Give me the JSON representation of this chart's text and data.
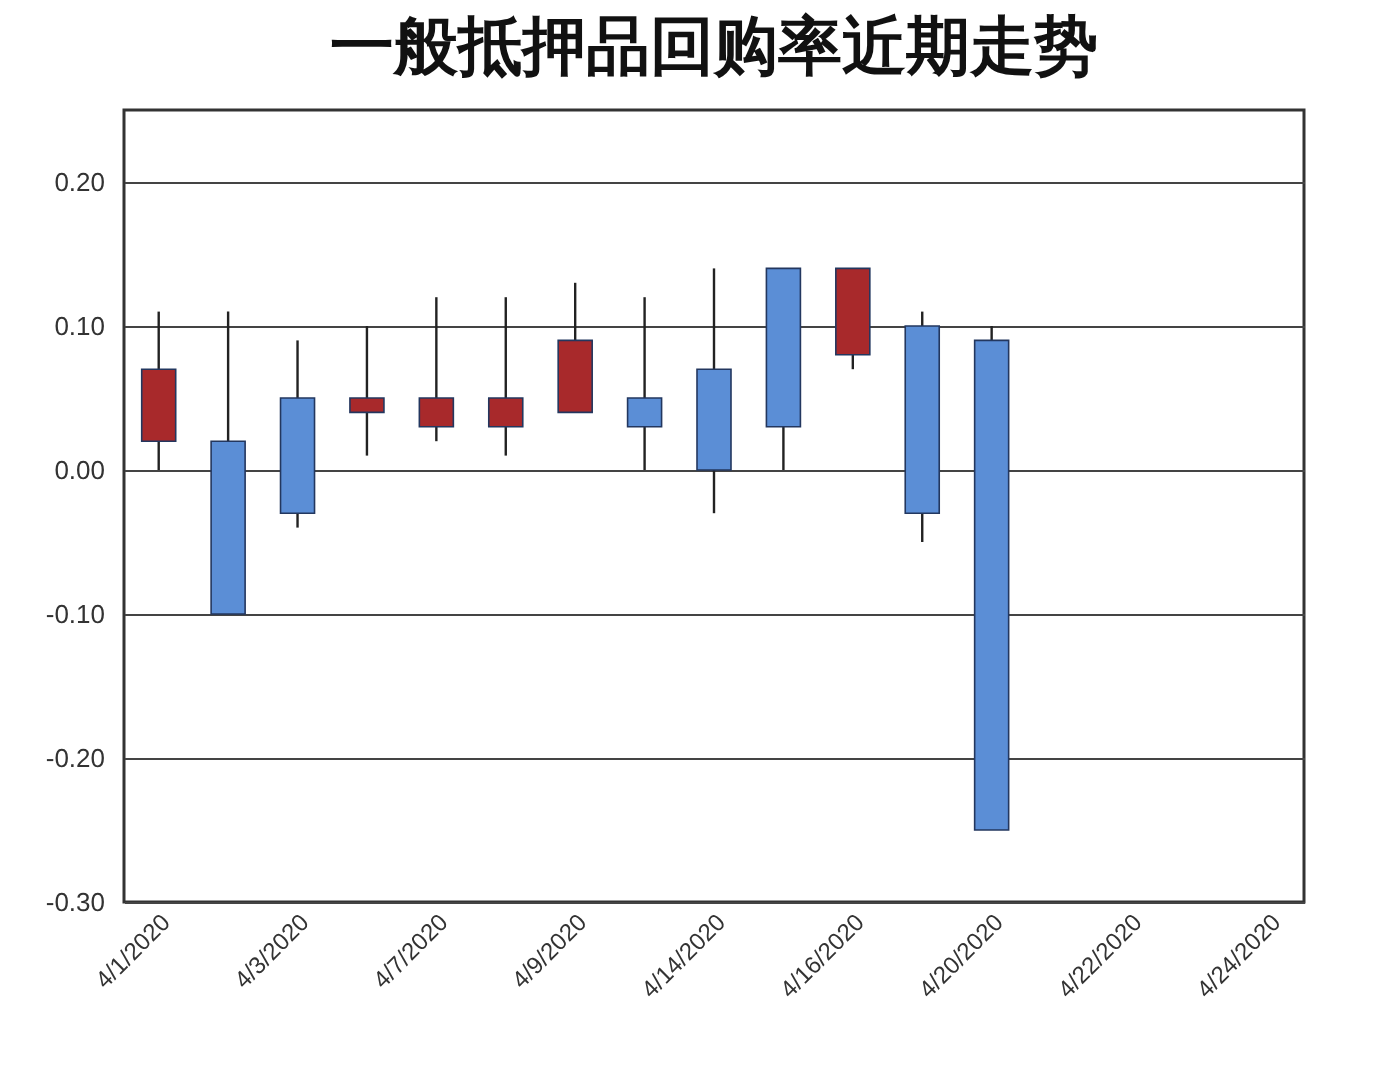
{
  "chart_data": {
    "type": "candlestick",
    "title": "一般抵押品回购率近期走势",
    "categories": [
      "4/1/2020",
      null,
      "4/3/2020",
      null,
      "4/7/2020",
      null,
      "4/9/2020",
      null,
      "4/14/2020",
      null,
      "4/16/2020",
      null,
      "4/20/2020",
      null,
      "4/22/2020",
      null,
      "4/24/2020"
    ],
    "ohlc": [
      [
        0.02,
        0.11,
        0.0,
        0.07
      ],
      [
        0.02,
        0.11,
        -0.1,
        -0.1
      ],
      [
        0.05,
        0.09,
        -0.04,
        -0.03
      ],
      [
        0.04,
        0.1,
        0.01,
        0.05
      ],
      [
        0.03,
        0.12,
        0.02,
        0.05
      ],
      [
        0.03,
        0.12,
        0.01,
        0.05
      ],
      [
        0.04,
        0.13,
        0.04,
        0.09
      ],
      [
        0.05,
        0.12,
        0.0,
        0.03
      ],
      [
        0.07,
        0.14,
        -0.03,
        0.0
      ],
      [
        0.14,
        0.14,
        0.0,
        0.03
      ],
      [
        0.08,
        0.14,
        0.07,
        0.14
      ],
      [
        0.1,
        0.11,
        -0.05,
        -0.03
      ],
      [
        0.09,
        0.1,
        -0.25,
        -0.25
      ],
      null,
      null,
      null,
      null
    ],
    "colors": [
      "#a8292b",
      "#5b8ed6",
      "#5b8ed6",
      "#a8292b",
      "#a8292b",
      "#a8292b",
      "#a8292b",
      "#5b8ed6",
      "#5b8ed6",
      "#5b8ed6",
      "#a8292b",
      "#5b8ed6",
      "#5b8ed6",
      null,
      null,
      null,
      null
    ],
    "ylim": [
      -0.3,
      0.25
    ],
    "yticks": [
      {
        "value": -0.3,
        "label": "-0.30"
      },
      {
        "value": -0.2,
        "label": "-0.20"
      },
      {
        "value": -0.1,
        "label": "-0.10"
      },
      {
        "value": 0,
        "label": "0.00"
      },
      {
        "value": 0.1,
        "label": "0.10"
      },
      {
        "value": 0.2,
        "label": "0.20"
      }
    ],
    "grid": "y"
  }
}
